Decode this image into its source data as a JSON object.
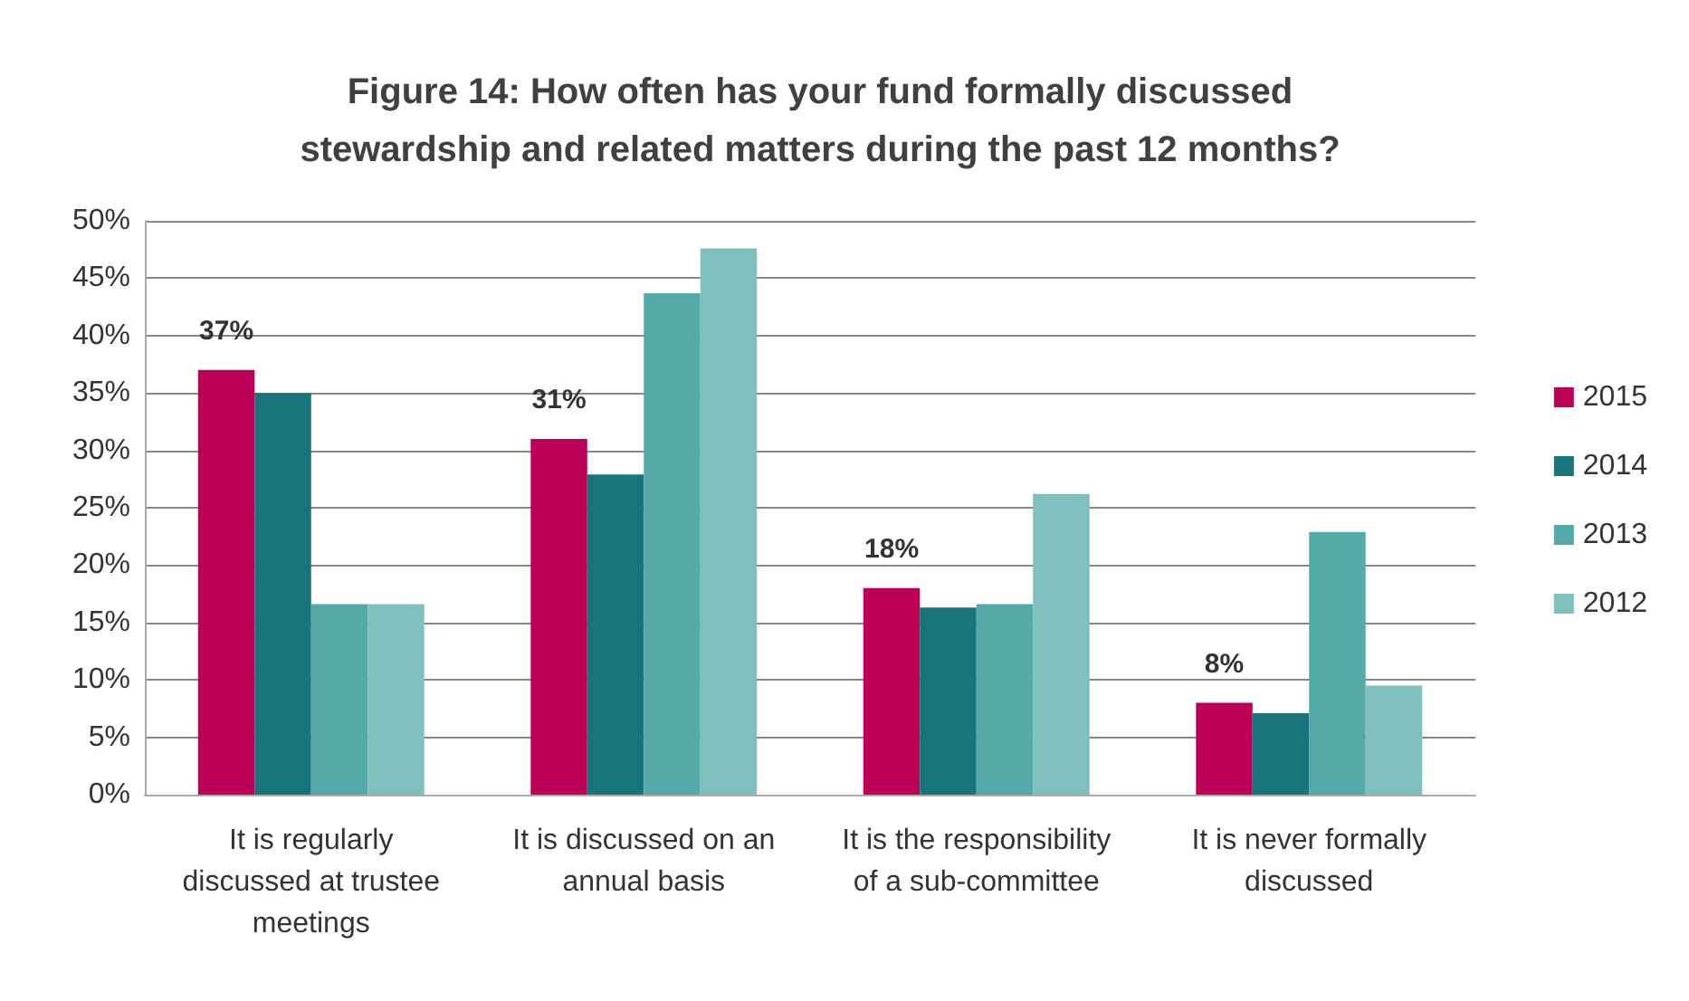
{
  "chart_data": {
    "type": "bar",
    "title": "Figure 14: How often has your fund formally discussed\nstewardship and related matters during the past 12 months?",
    "categories": [
      "It is regularly\ndiscussed at trustee\nmeetings",
      "It is discussed on an\nannual basis",
      "It is the responsibility\nof a sub-committee",
      "It is never formally\ndiscussed"
    ],
    "series": [
      {
        "name": "2015",
        "color": "#bc0056",
        "values": [
          37,
          31,
          18,
          8
        ],
        "value_labels": [
          "37%",
          "31%",
          "18%",
          "8%"
        ]
      },
      {
        "name": "2014",
        "color": "#17747a",
        "values": [
          35,
          27.9,
          16.3,
          7.1
        ]
      },
      {
        "name": "2013",
        "color": "#53aaa9",
        "values": [
          16.6,
          43.7,
          16.6,
          22.9
        ]
      },
      {
        "name": "2012",
        "color": "#7fbfbd",
        "values": [
          16.6,
          47.6,
          26.2,
          9.5
        ]
      }
    ],
    "ylim": [
      0,
      50
    ],
    "yticks": [
      {
        "value": 0,
        "label": "0%"
      },
      {
        "value": 5,
        "label": "5%"
      },
      {
        "value": 10,
        "label": "10%"
      },
      {
        "value": 15,
        "label": "15%"
      },
      {
        "value": 20,
        "label": "20%"
      },
      {
        "value": 25,
        "label": "25%"
      },
      {
        "value": 30,
        "label": "30%"
      },
      {
        "value": 35,
        "label": "35%"
      },
      {
        "value": 40,
        "label": "40%"
      },
      {
        "value": 45,
        "label": "45%"
      },
      {
        "value": 50,
        "label": "50%"
      }
    ],
    "grid": "y",
    "legend": "right"
  }
}
